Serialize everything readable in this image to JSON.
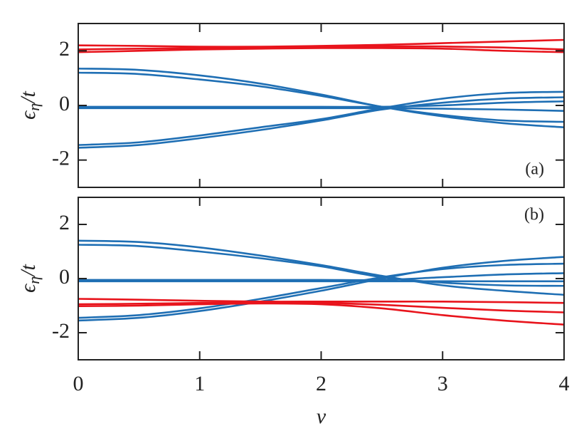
{
  "chart_data": [
    {
      "type": "line",
      "annotation": "(a)",
      "ylabel": {
        "symbol": "ϵ",
        "subscript": "η",
        "rest": "/t"
      },
      "x": [
        0,
        0.5,
        1,
        1.5,
        2,
        2.5,
        3,
        3.5,
        4
      ],
      "xlim": [
        0,
        4
      ],
      "xticks": [
        0,
        1,
        2,
        3,
        4
      ],
      "ylim": [
        -3,
        3
      ],
      "yticks": [
        -2,
        0,
        2
      ],
      "series": [
        {
          "color": "#e8141c",
          "values": [
            2.2,
            2.18,
            2.15,
            2.15,
            2.18,
            2.22,
            2.28,
            2.34,
            2.4
          ]
        },
        {
          "color": "#e8141c",
          "values": [
            2.05,
            2.08,
            2.1,
            2.12,
            2.14,
            2.16,
            2.16,
            2.12,
            2.05
          ]
        },
        {
          "color": "#e8141c",
          "values": [
            1.95,
            2.0,
            2.05,
            2.08,
            2.1,
            2.1,
            2.08,
            2.0,
            1.95
          ]
        },
        {
          "color": "#1f6fb4",
          "values": [
            1.35,
            1.3,
            1.1,
            0.8,
            0.4,
            -0.05,
            -0.4,
            -0.65,
            -0.8
          ]
        },
        {
          "color": "#1f6fb4",
          "values": [
            1.2,
            1.15,
            0.95,
            0.7,
            0.35,
            -0.05,
            -0.35,
            -0.55,
            -0.6
          ]
        },
        {
          "color": "#1f6fb4",
          "values": [
            -0.05,
            -0.05,
            -0.05,
            -0.05,
            -0.05,
            -0.05,
            0,
            0.1,
            0.15
          ]
        },
        {
          "color": "#1f6fb4",
          "values": [
            -0.1,
            -0.1,
            -0.1,
            -0.1,
            -0.1,
            -0.1,
            -0.12,
            -0.15,
            -0.2
          ]
        },
        {
          "color": "#1f6fb4",
          "values": [
            -1.45,
            -1.35,
            -1.1,
            -0.8,
            -0.5,
            -0.1,
            0.25,
            0.45,
            0.5
          ]
        },
        {
          "color": "#1f6fb4",
          "values": [
            -1.55,
            -1.45,
            -1.2,
            -0.9,
            -0.55,
            -0.15,
            0.1,
            0.25,
            0.3
          ]
        }
      ]
    },
    {
      "type": "line",
      "annotation": "(b)",
      "ylabel": {
        "symbol": "ϵ",
        "subscript": "η",
        "rest": "/t"
      },
      "xlabel": "ν",
      "x": [
        0,
        0.5,
        1,
        1.5,
        2,
        2.5,
        3,
        3.5,
        4
      ],
      "xlim": [
        0,
        4
      ],
      "xticks": [
        0,
        1,
        2,
        3,
        4
      ],
      "ylim": [
        -3,
        3
      ],
      "yticks": [
        -2,
        0,
        2
      ],
      "series": [
        {
          "color": "#1f6fb4",
          "values": [
            1.4,
            1.35,
            1.15,
            0.85,
            0.5,
            0.1,
            -0.25,
            -0.45,
            -0.6
          ]
        },
        {
          "color": "#1f6fb4",
          "values": [
            1.25,
            1.2,
            1.0,
            0.75,
            0.45,
            0.05,
            -0.15,
            -0.25,
            -0.27
          ]
        },
        {
          "color": "#1f6fb4",
          "values": [
            -0.05,
            -0.05,
            -0.05,
            -0.05,
            -0.05,
            -0.05,
            0.05,
            0.15,
            0.2
          ]
        },
        {
          "color": "#1f6fb4",
          "values": [
            -0.1,
            -0.1,
            -0.1,
            -0.1,
            -0.1,
            -0.1,
            -0.1,
            -0.1,
            -0.1
          ]
        },
        {
          "color": "#1f6fb4",
          "values": [
            -1.45,
            -1.35,
            -1.1,
            -0.75,
            -0.35,
            0.05,
            0.35,
            0.5,
            0.55
          ]
        },
        {
          "color": "#1f6fb4",
          "values": [
            -1.55,
            -1.45,
            -1.2,
            -0.85,
            -0.45,
            0.0,
            0.4,
            0.65,
            0.8
          ]
        },
        {
          "color": "#e8141c",
          "values": [
            -0.75,
            -0.78,
            -0.82,
            -0.85,
            -0.85,
            -0.85,
            -0.85,
            -0.87,
            -0.9
          ]
        },
        {
          "color": "#e8141c",
          "values": [
            -0.95,
            -0.93,
            -0.9,
            -0.88,
            -0.9,
            -0.97,
            -1.08,
            -1.18,
            -1.25
          ]
        },
        {
          "color": "#e8141c",
          "values": [
            -1.02,
            -1.0,
            -0.95,
            -0.92,
            -0.95,
            -1.1,
            -1.35,
            -1.55,
            -1.7
          ]
        }
      ]
    }
  ]
}
